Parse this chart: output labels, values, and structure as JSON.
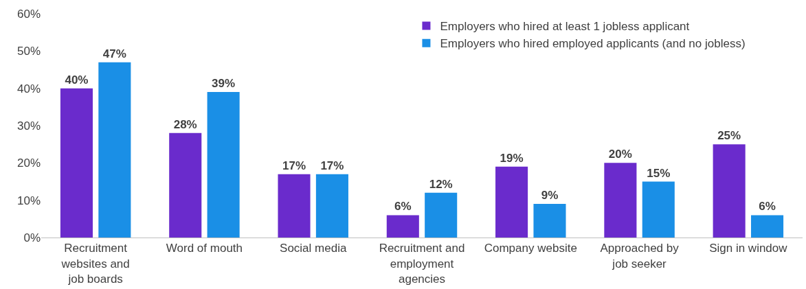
{
  "chart_data": {
    "type": "bar",
    "categories": [
      "Recruitment websites and job boards",
      "Word of mouth",
      "Social media",
      "Recruitment and employment agencies",
      "Company website",
      "Approached by job seeker",
      "Sign in window"
    ],
    "series": [
      {
        "name": "Employers who hired at least 1 jobless applicant",
        "color": "#6a2bcc",
        "values": [
          40,
          28,
          17,
          6,
          19,
          20,
          25
        ],
        "value_labels": [
          "40%",
          "28%",
          "17%",
          "6%",
          "19%",
          "20%",
          "25%"
        ]
      },
      {
        "name": "Employers who hired employed applicants (and no jobless)",
        "color": "#1a8fe6",
        "values": [
          47,
          39,
          17,
          12,
          9,
          15,
          6
        ],
        "value_labels": [
          "47%",
          "39%",
          "17%",
          "12%",
          "9%",
          "15%",
          "6%"
        ]
      }
    ],
    "ylim": [
      0,
      60
    ],
    "yticks": [
      {
        "value": 0,
        "label": "0%"
      },
      {
        "value": 10,
        "label": "10%"
      },
      {
        "value": 20,
        "label": "20%"
      },
      {
        "value": 30,
        "label": "30%"
      },
      {
        "value": 40,
        "label": "40%"
      },
      {
        "value": 50,
        "label": "50%"
      },
      {
        "value": 60,
        "label": "60%"
      }
    ],
    "legend": "top right",
    "grid": false
  }
}
